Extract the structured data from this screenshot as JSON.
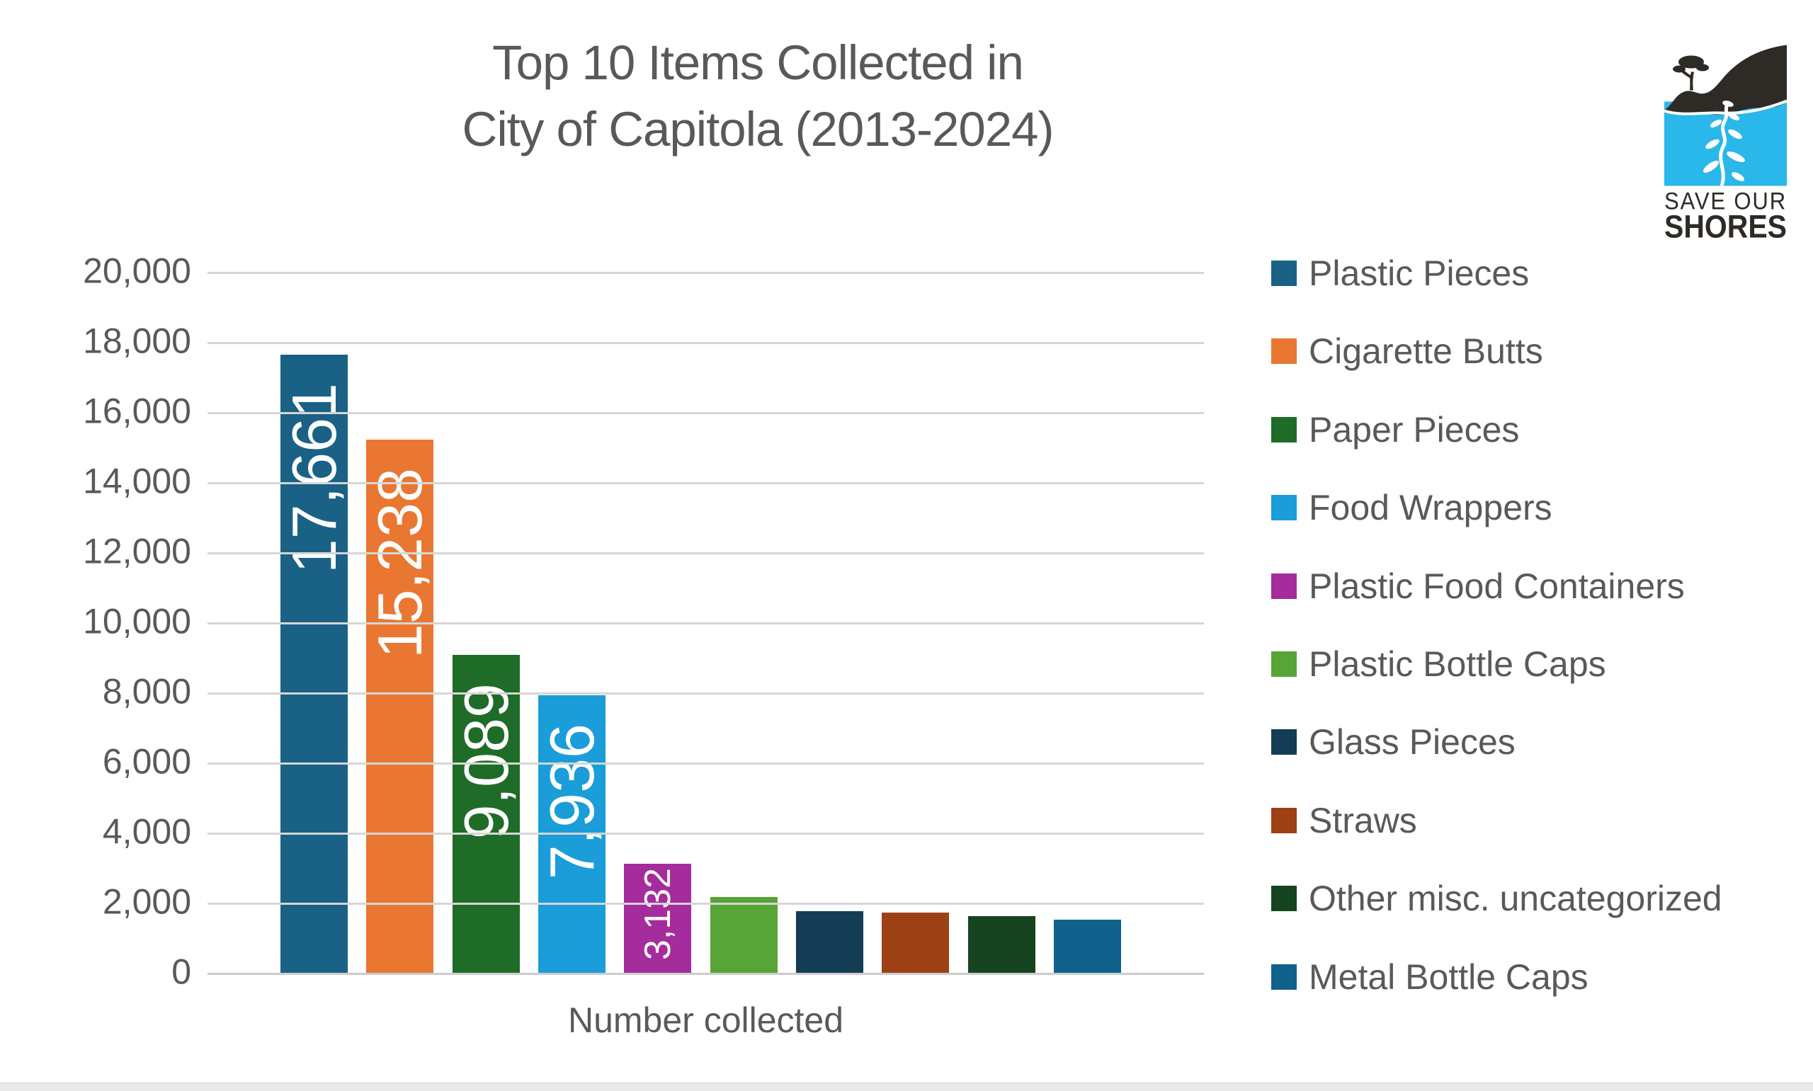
{
  "title": {
    "line1": "Top 10 Items Collected in",
    "line2": "City of Capitola (2013-2024)"
  },
  "logo": {
    "line1": "SAVE OUR",
    "line2": "SHORES",
    "colors": {
      "water": "#2ab7e9",
      "land": "#2e2a25",
      "text": "#2e2a25"
    }
  },
  "chart_data": {
    "type": "bar",
    "title": "Top 10 Items Collected in City of Capitola (2013-2024)",
    "xlabel": "Number collected",
    "ylabel": "",
    "ylim": [
      0,
      20000
    ],
    "y_tick_step": 2000,
    "y_tick_labels": [
      "0",
      "2,000",
      "4,000",
      "6,000",
      "8,000",
      "10,000",
      "12,000",
      "14,000",
      "16,000",
      "18,000",
      "20,000"
    ],
    "grid": true,
    "legend_position": "right",
    "categories": [
      "Plastic Pieces",
      "Cigarette Butts",
      "Paper Pieces",
      "Food Wrappers",
      "Plastic Food Containers",
      "Plastic Bottle Caps",
      "Glass Pieces",
      "Straws",
      "Other misc. uncategorized",
      "Metal Bottle Caps"
    ],
    "values": [
      17661,
      15238,
      9089,
      7936,
      3132,
      2180,
      1780,
      1730,
      1630,
      1540
    ],
    "value_labels": [
      "17,661",
      "15,238",
      "9,089",
      "7,936",
      "3,132",
      "",
      "",
      "",
      "",
      ""
    ],
    "value_is_estimated": [
      false,
      false,
      false,
      false,
      false,
      true,
      true,
      true,
      true,
      true
    ],
    "colors": [
      "#1a6186",
      "#e97732",
      "#1e6c27",
      "#1b9dd9",
      "#a52c9c",
      "#57a437",
      "#143c54",
      "#9d4014",
      "#164421",
      "#10628c"
    ],
    "gridline_color": "#d6d6d6",
    "text_color": "#595959",
    "data_label_color": "#ffffff"
  }
}
